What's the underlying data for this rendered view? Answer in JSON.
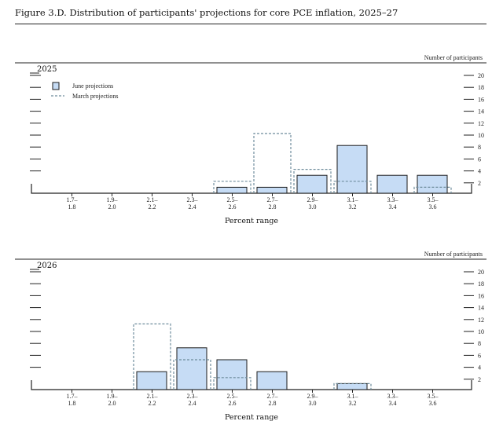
{
  "figure": {
    "title": "Figure 3.D. Distribution of participants' projections for core PCE inflation, 2025–27"
  },
  "colors": {
    "june_fill": "#c6dcf5",
    "june_stroke": "#1a1a1a",
    "march_stroke": "#6e8c9c",
    "axis": "#222222"
  },
  "chart_data": [
    {
      "type": "bar",
      "year_label": "2025",
      "categories": [
        "1.7–\n1.8",
        "1.9–\n2.0",
        "2.1–\n2.2",
        "2.3–\n2.4",
        "2.5–\n2.6",
        "2.7–\n2.8",
        "2.9–\n3.0",
        "3.1–\n3.2",
        "3.3–\n3.4",
        "3.5–\n3.6"
      ],
      "series": [
        {
          "name": "June projections",
          "style": "filled bars",
          "values": [
            0,
            0,
            0,
            0,
            1,
            1,
            3,
            8,
            3,
            3
          ]
        },
        {
          "name": "March projections",
          "style": "dashed outline",
          "values": [
            0,
            0,
            0,
            0,
            2,
            10,
            4,
            2,
            0,
            1
          ]
        }
      ],
      "xlabel": "Percent range",
      "ylabel": "Number of participants",
      "yticks": [
        2,
        4,
        6,
        8,
        10,
        12,
        14,
        16,
        18,
        20
      ],
      "ylim": [
        0,
        20
      ],
      "legend": {
        "placement": "top-left",
        "entries": [
          "June projections",
          "March projections"
        ]
      },
      "grid": false
    },
    {
      "type": "bar",
      "year_label": "2026",
      "categories": [
        "1.7–\n1.8",
        "1.9–\n2.0",
        "2.1–\n2.2",
        "2.3–\n2.4",
        "2.5–\n2.6",
        "2.7–\n2.8",
        "2.9–\n3.0",
        "3.1–\n3.2",
        "3.3–\n3.4",
        "3.5–\n3.6"
      ],
      "series": [
        {
          "name": "June projections",
          "style": "filled bars",
          "values": [
            0,
            0,
            3,
            7,
            5,
            3,
            0,
            1,
            0,
            0
          ]
        },
        {
          "name": "March projections",
          "style": "dashed outline",
          "values": [
            0,
            0,
            11,
            5,
            2,
            0,
            0,
            1,
            0,
            0
          ]
        }
      ],
      "xlabel": "Percent range",
      "ylabel": "Number of participants",
      "yticks": [
        2,
        4,
        6,
        8,
        10,
        12,
        14,
        16,
        18,
        20
      ],
      "ylim": [
        0,
        20
      ],
      "grid": false
    }
  ]
}
